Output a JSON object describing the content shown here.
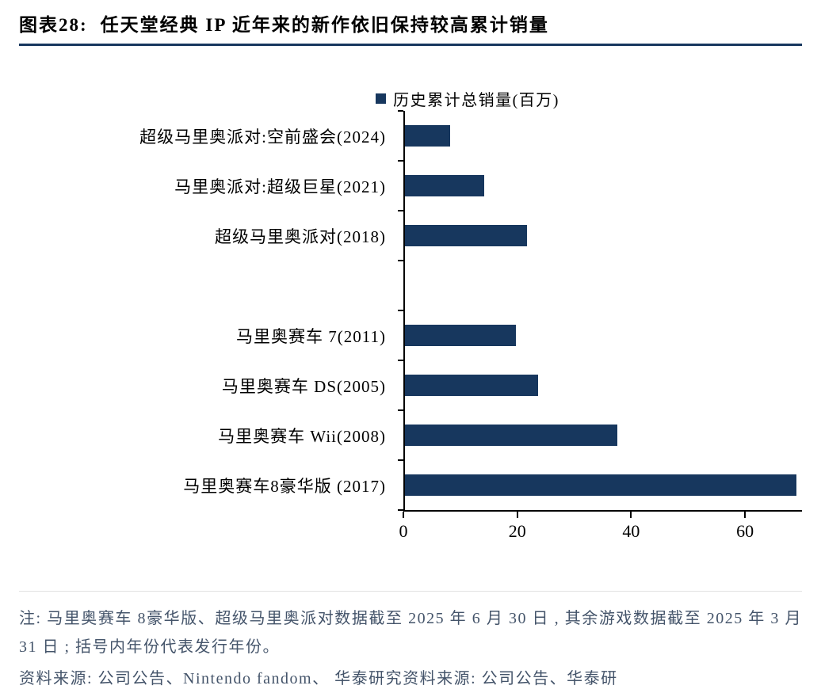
{
  "header": {
    "figure_label": "图表28:",
    "title": "任天堂经典 IP 近年来的新作依旧保持较高累计销量"
  },
  "chart_data": {
    "type": "bar",
    "orientation": "horizontal",
    "title": "任天堂经典 IP 近年来的新作依旧保持较高累计销量",
    "legend": "历史累计总销量(百万)",
    "legend_position": "top-center",
    "categories": [
      "超级马里奥派对:空前盛会(2024)",
      "马里奥派对:超级巨星(2021)",
      "超级马里奥派对(2018)",
      "",
      "马里奥赛车 7(2011)",
      "马里奥赛车 DS(2005)",
      "马里奥赛车 Wii(2008)",
      "马里奥赛车8豪华版 (2017)"
    ],
    "values": [
      8,
      14,
      21.5,
      null,
      19.5,
      23.5,
      37.5,
      69
    ],
    "xlabel": "",
    "ylabel": "",
    "xlim": [
      0,
      70
    ],
    "xticks": [
      0,
      20,
      40,
      60
    ],
    "grid": false,
    "bar_color": "#17375e"
  },
  "notes": {
    "note": "注: 马里奥赛车 8豪华版、超级马里奥派对数据截至 2025 年 6 月 30 日 , 其余游戏数据截至 2025 年 3 月 31 日 ; 括号内年份代表发行年份。",
    "source": "资料来源: 公司公告、Nintendo fandom、 华泰研究资料来源: 公司公告、华泰研"
  },
  "colors": {
    "bar": "#17375e",
    "title_rule": "#17375e",
    "note_text": "#44546a"
  }
}
